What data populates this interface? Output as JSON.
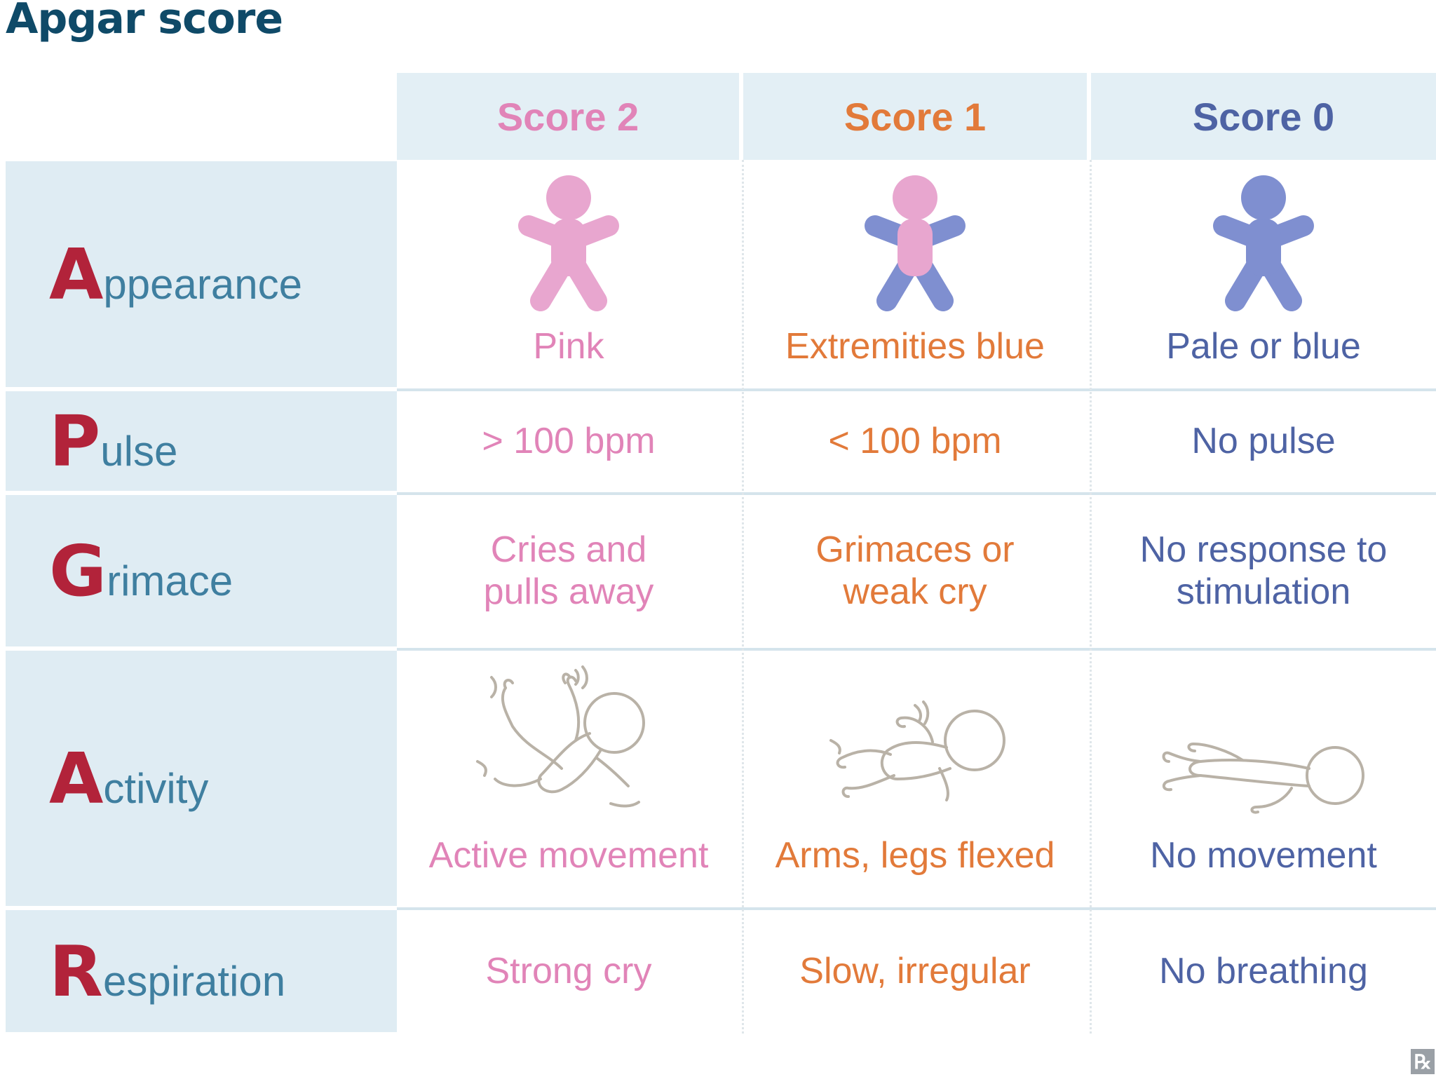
{
  "title": "Apgar score",
  "headers": [
    {
      "label": "Score 2",
      "color": "#e184b8"
    },
    {
      "label": "Score 1",
      "color": "#e27a3a"
    },
    {
      "label": "Score 0",
      "color": "#4e63a4"
    }
  ],
  "rows": [
    {
      "initial": "A",
      "rest": "ppearance",
      "cells": [
        "Pink",
        "Extremities blue",
        "Pale or blue"
      ]
    },
    {
      "initial": "P",
      "rest": "ulse",
      "cells": [
        "> 100 bpm",
        "< 100 bpm",
        "No pulse"
      ]
    },
    {
      "initial": "G",
      "rest": "rimace",
      "cells": [
        "Cries and\npulls away",
        "Grimaces or\nweak cry",
        "No response to\nstimulation"
      ]
    },
    {
      "initial": "A",
      "rest": "ctivity",
      "cells": [
        "Active movement",
        "Arms, legs flexed",
        "No movement"
      ]
    },
    {
      "initial": "R",
      "rest": "espiration",
      "cells": [
        "Strong cry",
        "Slow, irregular",
        "No breathing"
      ]
    }
  ],
  "icons": {
    "appearance": [
      "baby-pink-icon",
      "baby-extremities-blue-icon",
      "baby-blue-icon"
    ],
    "activity": [
      "baby-active-movement-icon",
      "baby-flexed-icon",
      "baby-no-movement-icon"
    ]
  },
  "colors": {
    "pink": "#e184b8",
    "pink_fill": "#e8a6cf",
    "blue_fill": "#7f8fd0",
    "orange": "#e27a3a",
    "navy": "#4e63a4",
    "label_red": "#b2233a",
    "label_blue": "#3f7fa0"
  },
  "badge": "℞"
}
